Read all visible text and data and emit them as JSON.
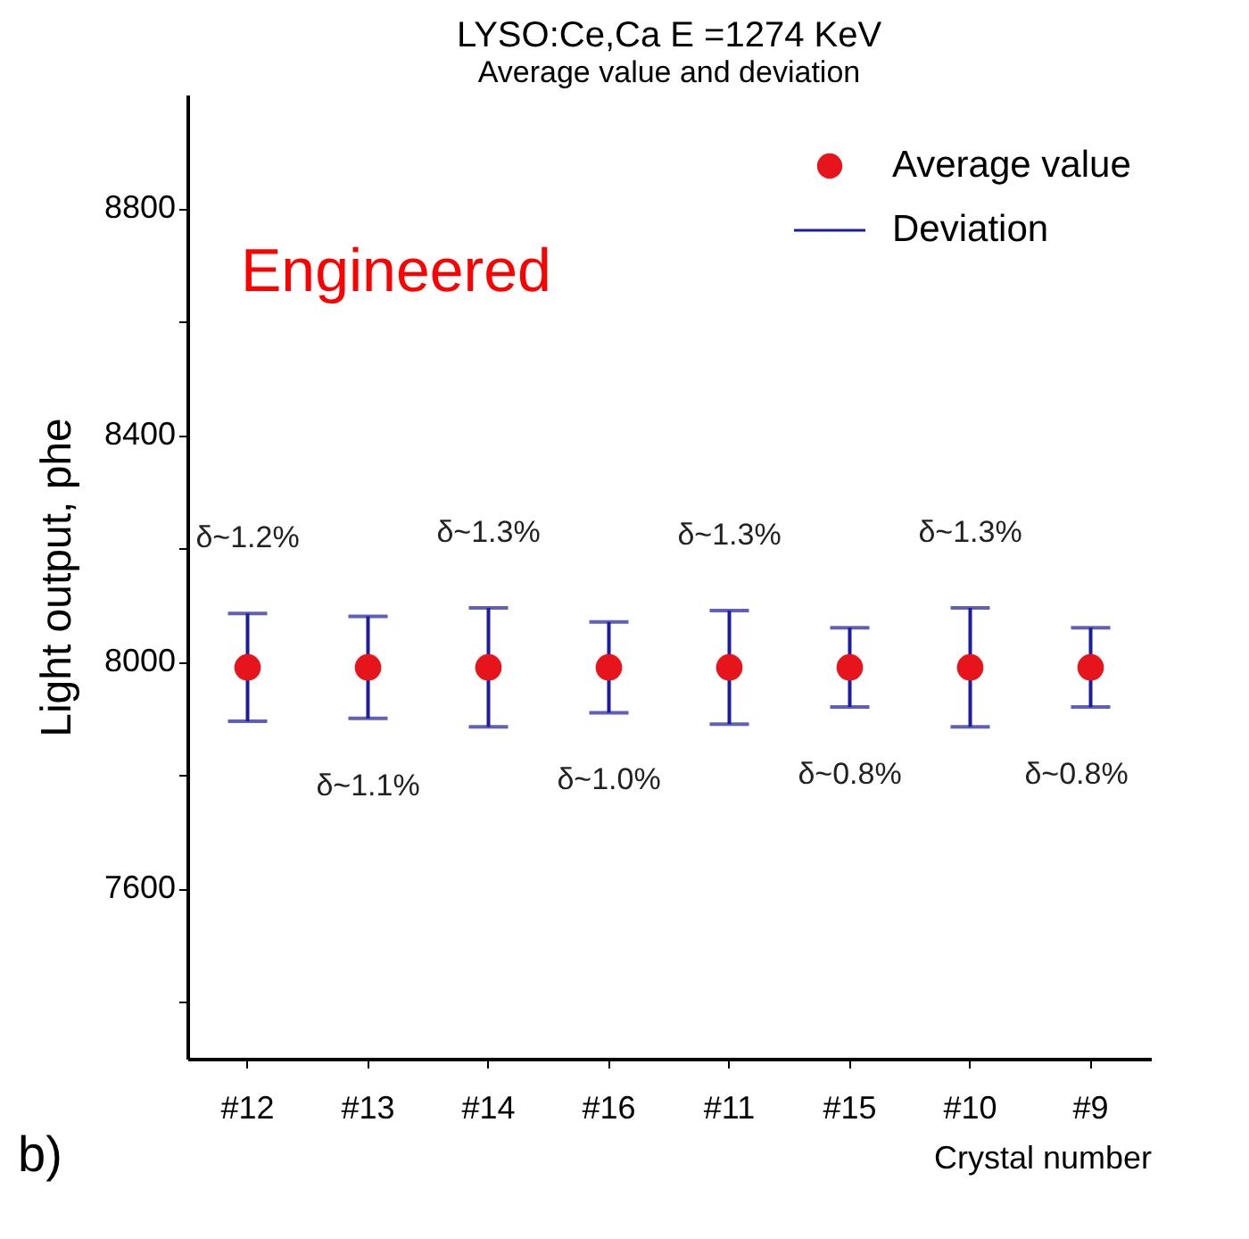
{
  "chart_data": {
    "type": "scatter",
    "title": "LYSO:Ce,Ca   E =1274 KeV",
    "subtitle": "Average value and deviation",
    "xlabel": "Crystal number",
    "ylabel": "Light output, phe",
    "categories": [
      "#12",
      "#13",
      "#14",
      "#16",
      "#11",
      "#15",
      "#10",
      "#9"
    ],
    "series": [
      {
        "name": "Average value",
        "color": "#e8141b",
        "values": [
          7990,
          7990,
          7990,
          7990,
          7990,
          7990,
          7990,
          7990
        ],
        "errors": [
          95,
          90,
          105,
          80,
          100,
          70,
          105,
          70
        ]
      }
    ],
    "ylim": [
      7300,
      9000
    ],
    "yticks": [
      {
        "value": 7400,
        "label": null
      },
      7600,
      {
        "value": 7800,
        "label": null
      },
      8000,
      {
        "value": 8200,
        "label": null
      },
      8400,
      {
        "value": 8600,
        "label": null
      },
      8800
    ],
    "annotations": [
      "Engineered",
      "b)",
      "Deviation",
      "δ~1.2%",
      "δ~1.1%",
      "δ~1.3%",
      "δ~1.0%",
      "δ~1.3%",
      "δ~0.8%",
      "δ~1.3%",
      "δ~0.8%"
    ],
    "legend": "top right",
    "marker": "circle",
    "grid": false
  }
}
